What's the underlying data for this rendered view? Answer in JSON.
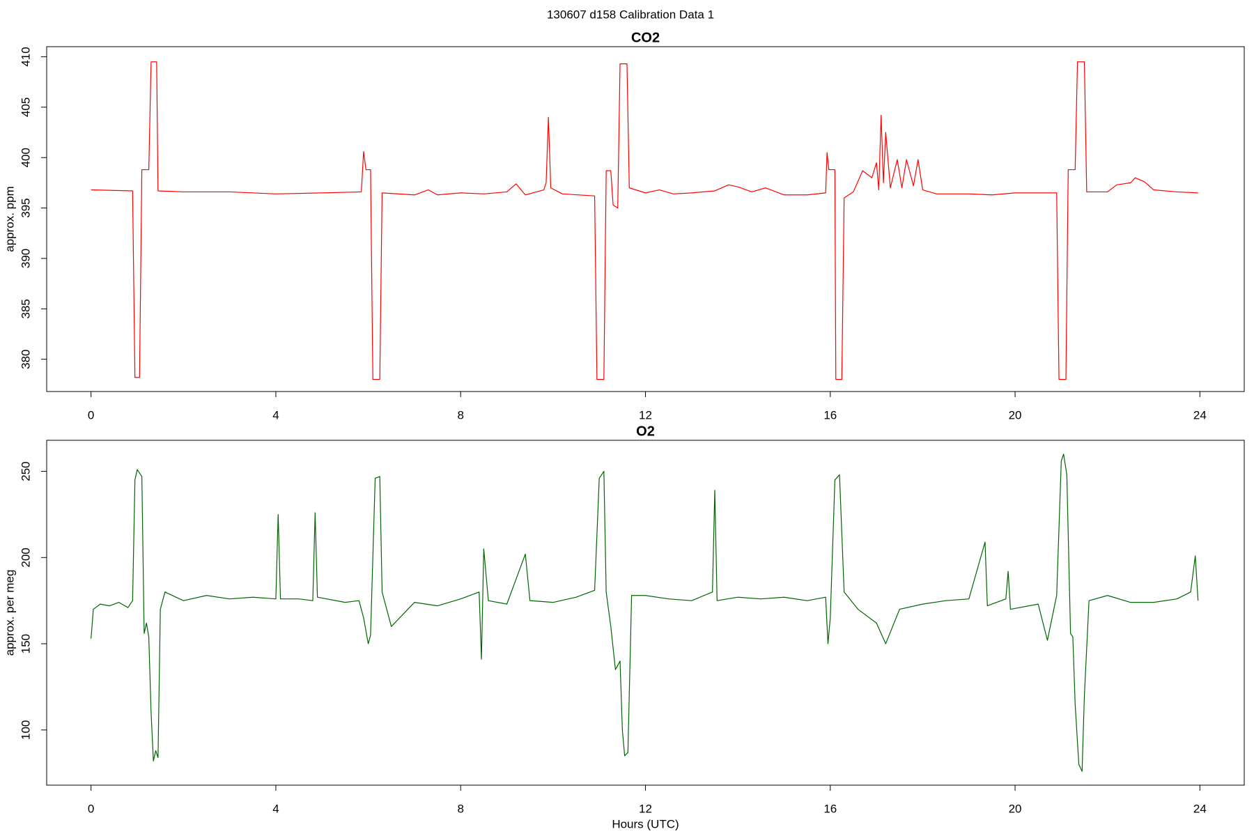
{
  "title": "130607   d158   Calibration Data 1",
  "chart_data": [
    {
      "type": "line",
      "title": "CO2",
      "y_label": "approx. ppm",
      "xlim": [
        -0.96,
        24.96
      ],
      "xticks": [
        0,
        4,
        8,
        12,
        16,
        20,
        24
      ],
      "ylim": [
        376.8,
        411
      ],
      "yticks": [
        380,
        385,
        390,
        395,
        400,
        405,
        410
      ],
      "series": [
        {
          "name": "CO2",
          "color": "#ff0000",
          "x": [
            0,
            0.9,
            0.95,
            1.05,
            1.1,
            1.25,
            1.3,
            1.42,
            1.45,
            2,
            3,
            4,
            5,
            5.85,
            5.9,
            5.95,
            6.05,
            6.1,
            6.25,
            6.3,
            7,
            7.3,
            7.5,
            8,
            8.5,
            9,
            9.2,
            9.4,
            9.8,
            9.85,
            9.9,
            9.95,
            10.2,
            10.9,
            10.95,
            11.1,
            11.15,
            11.25,
            11.3,
            11.4,
            11.45,
            11.6,
            11.65,
            12,
            12.3,
            12.6,
            13,
            13.5,
            13.8,
            14,
            14.3,
            14.6,
            15,
            15.5,
            15.9,
            15.93,
            15.97,
            16.1,
            16.12,
            16.25,
            16.3,
            16.5,
            16.7,
            16.9,
            17,
            17.05,
            17.1,
            17.15,
            17.2,
            17.3,
            17.45,
            17.55,
            17.65,
            17.8,
            17.9,
            18,
            18.3,
            19,
            19.5,
            20,
            20.5,
            20.9,
            20.95,
            21.1,
            21.15,
            21.3,
            21.35,
            21.5,
            21.55,
            22,
            22.2,
            22.5,
            22.6,
            22.8,
            23,
            23.5,
            23.96
          ],
          "values": [
            396.8,
            396.7,
            378.2,
            378.2,
            398.8,
            398.8,
            409.5,
            409.5,
            396.7,
            396.6,
            396.6,
            396.4,
            396.5,
            396.6,
            400.6,
            398.8,
            398.8,
            378,
            378,
            396.5,
            396.3,
            396.8,
            396.3,
            396.5,
            396.4,
            396.6,
            397.4,
            396.3,
            396.8,
            397.5,
            404,
            397,
            396.4,
            396.2,
            378,
            378,
            398.7,
            398.7,
            395.3,
            395,
            409.3,
            409.3,
            397,
            396.5,
            396.8,
            396.4,
            396.5,
            396.7,
            397.3,
            397.1,
            396.6,
            397,
            396.3,
            396.3,
            396.5,
            400.5,
            398.8,
            398.8,
            378,
            378,
            396,
            396.6,
            398.7,
            398,
            399.5,
            396.8,
            404.2,
            397.5,
            402.5,
            397,
            399.8,
            397,
            399.8,
            397.2,
            399.8,
            396.8,
            396.4,
            396.4,
            396.3,
            396.5,
            396.5,
            396.5,
            378,
            378,
            398.8,
            398.8,
            409.5,
            409.5,
            396.6,
            396.6,
            397.3,
            397.5,
            398,
            397.6,
            396.8,
            396.6,
            396.5
          ]
        }
      ]
    },
    {
      "type": "line",
      "title": "O2",
      "y_label": "approx. per meg",
      "x_label": "Hours (UTC)",
      "xlim": [
        -0.96,
        24.96
      ],
      "xticks": [
        0,
        4,
        8,
        12,
        16,
        20,
        24
      ],
      "ylim": [
        68,
        268
      ],
      "yticks": [
        100,
        150,
        200,
        250
      ],
      "series": [
        {
          "name": "O2",
          "color": "#006400",
          "x": [
            0,
            0.05,
            0.2,
            0.4,
            0.6,
            0.8,
            0.9,
            0.95,
            1.0,
            1.1,
            1.15,
            1.2,
            1.25,
            1.3,
            1.35,
            1.4,
            1.45,
            1.5,
            1.6,
            2,
            2.5,
            3,
            3.5,
            4,
            4.05,
            4.1,
            4.5,
            4.8,
            4.85,
            4.9,
            5.5,
            5.8,
            5.9,
            6.0,
            6.05,
            6.15,
            6.25,
            6.3,
            6.5,
            7,
            7.5,
            8,
            8.4,
            8.45,
            8.5,
            8.6,
            9,
            9.4,
            9.5,
            10,
            10.5,
            10.9,
            11.0,
            11.1,
            11.15,
            11.25,
            11.35,
            11.45,
            11.5,
            11.55,
            11.62,
            11.7,
            12,
            12.5,
            13,
            13.45,
            13.5,
            13.55,
            14,
            14.5,
            15,
            15.5,
            15.9,
            15.95,
            16.0,
            16.1,
            16.2,
            16.3,
            16.6,
            17,
            17.2,
            17.5,
            18,
            18.5,
            19,
            19.35,
            19.4,
            19.8,
            19.85,
            19.9,
            20.5,
            20.7,
            20.9,
            21.0,
            21.05,
            21.12,
            21.2,
            21.25,
            21.3,
            21.38,
            21.45,
            21.5,
            21.6,
            22,
            22.5,
            23,
            23.5,
            23.8,
            23.9,
            23.96
          ],
          "values": [
            153,
            170,
            173,
            172,
            174,
            171,
            175,
            245,
            251,
            247,
            156,
            162,
            154,
            110,
            82,
            88,
            84,
            170,
            180,
            175,
            178,
            176,
            177,
            176,
            225,
            176,
            176,
            175,
            226,
            177,
            174,
            175,
            165,
            150,
            155,
            246,
            247,
            180,
            160,
            174,
            172,
            176,
            180,
            141,
            205,
            175,
            173,
            202,
            175,
            174,
            177,
            181,
            246,
            250,
            180,
            160,
            135,
            140,
            100,
            85,
            87,
            178,
            178,
            176,
            175,
            180,
            239,
            175,
            177,
            176,
            177,
            175,
            177,
            150,
            165,
            245,
            248,
            180,
            170,
            162,
            150,
            170,
            173,
            175,
            176,
            209,
            172,
            176,
            192,
            170,
            173,
            152,
            178,
            256,
            260,
            248,
            156,
            154,
            115,
            80,
            76,
            120,
            175,
            178,
            174,
            174,
            176,
            180,
            201,
            175
          ]
        }
      ]
    }
  ]
}
